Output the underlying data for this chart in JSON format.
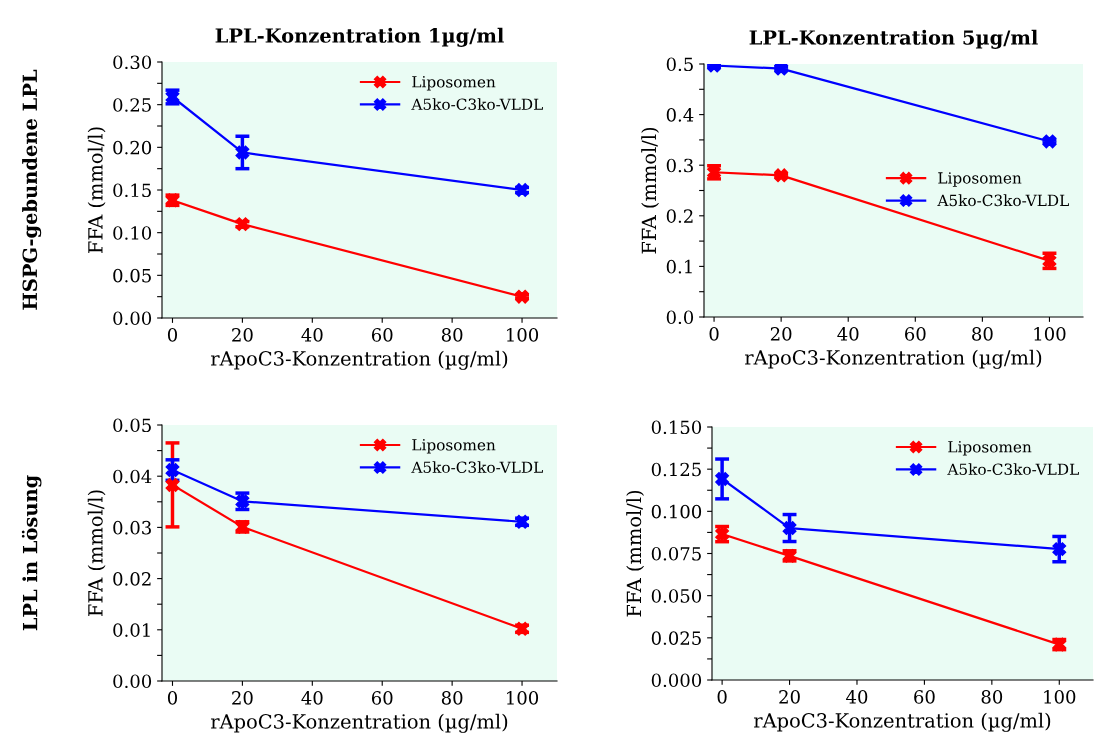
{
  "chart_data": [
    {
      "type": "line",
      "title": "LPL-Konzentration 1µg/ml",
      "annotations": [
        "HSPG-gebundene LPL"
      ],
      "xlabel": "rApoC3-Konzentration (µg/ml)",
      "ylabel": "FFA (mmol/l)",
      "x": [
        0,
        20,
        100
      ],
      "xlim": [
        -3,
        110
      ],
      "xticks": [
        0,
        20,
        40,
        60,
        80,
        100
      ],
      "ylim": [
        0,
        0.3
      ],
      "yticks": [
        {
          "value": 0,
          "label": "0.00"
        },
        {
          "value": 0.025,
          "label": null
        },
        {
          "value": 0.05,
          "label": "0.05"
        },
        {
          "value": 0.075,
          "label": null
        },
        {
          "value": 0.1,
          "label": "0.10"
        },
        {
          "value": 0.125,
          "label": null
        },
        {
          "value": 0.15,
          "label": "0.15"
        },
        {
          "value": 0.175,
          "label": null
        },
        {
          "value": 0.2,
          "label": "0.20"
        },
        {
          "value": 0.225,
          "label": null
        },
        {
          "value": 0.25,
          "label": "0.25"
        },
        {
          "value": 0.275,
          "label": null
        },
        {
          "value": 0.3,
          "label": "0.30"
        }
      ],
      "marker": "cross",
      "legend": "top right",
      "series": [
        {
          "name": "Liposomen",
          "color": "#ff0000",
          "values": [
            0.138,
            0.11,
            0.025
          ],
          "errors": [
            0.006,
            0.003,
            0.002
          ]
        },
        {
          "name": "A5ko-C3ko-VLDL",
          "color": "#0000ff",
          "values": [
            0.259,
            0.194,
            0.15
          ],
          "errors": [
            0.008,
            0.019,
            0.003
          ]
        }
      ]
    },
    {
      "type": "line",
      "title": "LPL-Konzentration 5µg/ml",
      "xlabel": "rApoC3-Konzentration (µg/ml)",
      "ylabel": "FFA (mmol/l)",
      "x": [
        0,
        20,
        100
      ],
      "xlim": [
        -3,
        110
      ],
      "xticks": [
        0,
        20,
        40,
        60,
        80,
        100
      ],
      "ylim": [
        0,
        0.5
      ],
      "yticks": [
        {
          "value": 0,
          "label": "0.0"
        },
        {
          "value": 0.05,
          "label": null
        },
        {
          "value": 0.1,
          "label": "0.1"
        },
        {
          "value": 0.15,
          "label": null
        },
        {
          "value": 0.2,
          "label": "0.2"
        },
        {
          "value": 0.25,
          "label": null
        },
        {
          "value": 0.3,
          "label": "0.3"
        },
        {
          "value": 0.35,
          "label": null
        },
        {
          "value": 0.4,
          "label": "0.4"
        },
        {
          "value": 0.45,
          "label": null
        },
        {
          "value": 0.5,
          "label": "0.5"
        }
      ],
      "marker": "cross",
      "legend": "right",
      "series": [
        {
          "name": "Liposomen",
          "color": "#ff0000",
          "values": [
            0.286,
            0.28,
            0.111
          ],
          "errors": [
            0.013,
            0.003,
            0.015
          ]
        },
        {
          "name": "A5ko-C3ko-VLDL",
          "color": "#0000ff",
          "values": [
            0.497,
            0.491,
            0.347
          ],
          "errors": [
            0.003,
            0.003,
            0.003
          ]
        }
      ]
    },
    {
      "type": "line",
      "annotations": [
        "LPL in Lösung"
      ],
      "xlabel": "rApoC3-Konzentration (µg/ml)",
      "ylabel": "FFA (mmol/l)",
      "x": [
        0,
        20,
        100
      ],
      "xlim": [
        -3,
        110
      ],
      "xticks": [
        0,
        20,
        40,
        60,
        80,
        100
      ],
      "ylim": [
        0,
        0.05
      ],
      "yticks": [
        {
          "value": 0,
          "label": "0.00"
        },
        {
          "value": 0.005,
          "label": null
        },
        {
          "value": 0.01,
          "label": "0.01"
        },
        {
          "value": 0.015,
          "label": null
        },
        {
          "value": 0.02,
          "label": "0.02"
        },
        {
          "value": 0.025,
          "label": null
        },
        {
          "value": 0.03,
          "label": "0.03"
        },
        {
          "value": 0.035,
          "label": null
        },
        {
          "value": 0.04,
          "label": "0.04"
        },
        {
          "value": 0.045,
          "label": null
        },
        {
          "value": 0.05,
          "label": "0.05"
        }
      ],
      "marker": "cross",
      "legend": "top right",
      "series": [
        {
          "name": "Liposomen",
          "color": "#ff0000",
          "values": [
            0.0383,
            0.0301,
            0.0102
          ],
          "errors": [
            0.0082,
            0.001,
            0.0007
          ]
        },
        {
          "name": "A5ko-C3ko-VLDL",
          "color": "#0000ff",
          "values": [
            0.0412,
            0.0351,
            0.0311
          ],
          "errors": [
            0.002,
            0.0016,
            0.0007
          ]
        }
      ]
    },
    {
      "type": "line",
      "xlabel": "rApoC3-Konzentration (µg/ml)",
      "ylabel": "FFA (mmol/l)",
      "x": [
        0,
        20,
        100
      ],
      "xlim": [
        -3,
        110
      ],
      "xticks": [
        0,
        20,
        40,
        60,
        80,
        100
      ],
      "ylim": [
        0,
        0.15
      ],
      "yticks": [
        {
          "value": 0,
          "label": "0.000"
        },
        {
          "value": 0.0125,
          "label": null
        },
        {
          "value": 0.025,
          "label": "0.025"
        },
        {
          "value": 0.0375,
          "label": null
        },
        {
          "value": 0.05,
          "label": "0.050"
        },
        {
          "value": 0.0625,
          "label": null
        },
        {
          "value": 0.075,
          "label": "0.075"
        },
        {
          "value": 0.0875,
          "label": null
        },
        {
          "value": 0.1,
          "label": "0.100"
        },
        {
          "value": 0.1125,
          "label": null
        },
        {
          "value": 0.125,
          "label": "0.125"
        },
        {
          "value": 0.1375,
          "label": null
        },
        {
          "value": 0.15,
          "label": "0.150"
        }
      ],
      "marker": "cross",
      "legend": "top right",
      "series": [
        {
          "name": "Liposomen",
          "color": "#ff0000",
          "values": [
            0.0865,
            0.0736,
            0.021
          ],
          "errors": [
            0.0045,
            0.003,
            0.003
          ]
        },
        {
          "name": "A5ko-C3ko-VLDL",
          "color": "#0000ff",
          "values": [
            0.1192,
            0.0901,
            0.0776
          ],
          "errors": [
            0.0118,
            0.008,
            0.0075
          ]
        }
      ]
    }
  ]
}
